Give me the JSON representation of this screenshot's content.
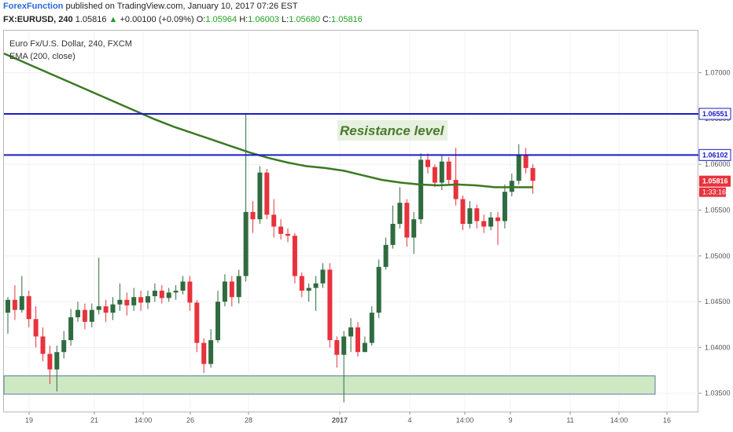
{
  "header": {
    "brand": "ForexFunction",
    "published": " published on TradingView.com, January 10, 2017 07:26 EST",
    "symbol": "FX:EURUSD, 240",
    "last": "1.05816",
    "change": "+0.00100 (+0.09%)",
    "o_label": "O:",
    "o_val": "1.05964",
    "h_label": "H:",
    "h_val": "1.06003",
    "l_label": "L:",
    "l_val": "1.05680",
    "c_label": "C:",
    "c_val": "1.05816"
  },
  "legend": {
    "instrument": "Euro Fx/U.S. Dollar, 240, FXCM",
    "indicator": "EMA (200, close)"
  },
  "colors": {
    "up": "#2f6b3f",
    "down": "#e8323c",
    "ema": "#3a7a22",
    "level": "#1a1ac8",
    "zone_fill": "#cfe8c4",
    "zone_stroke": "#5a7aa0",
    "price_tag": "#e8323c"
  },
  "chart_data": {
    "type": "candlestick",
    "ylim": [
      1.033,
      1.0746
    ],
    "y_ticks": [
      "1.07000",
      "1.06500",
      "1.06000",
      "1.05500",
      "1.05000",
      "1.04500",
      "1.04000",
      "1.03500"
    ],
    "x_ticks": [
      "19",
      "21",
      "14:00",
      "26",
      "28",
      "2017",
      "4",
      "14:00",
      "9",
      "11",
      "14:00",
      "16"
    ],
    "levels": [
      {
        "value": 1.06551,
        "label": "1.06551"
      },
      {
        "value": 1.06102,
        "label": "1.06102"
      }
    ],
    "annotation": "Resistance level",
    "support_zone": [
      1.0349,
      1.0369
    ],
    "last_price": {
      "value": 1.05816,
      "label": "1.05816",
      "countdown": "1:33:16"
    },
    "ema": [
      1.0721,
      1.0712,
      1.0703,
      1.0694,
      1.0685,
      1.0676,
      1.0667,
      1.0658,
      1.0649,
      1.0641,
      1.0634,
      1.0627,
      1.062,
      1.0613,
      1.0607,
      1.0602,
      1.0598,
      1.0596,
      1.0593,
      1.0588,
      1.0583,
      1.058,
      1.0578,
      1.0577,
      1.0578,
      1.0577,
      1.0575,
      1.0575,
      1.0575
    ],
    "candles": [
      [
        1.0438,
        1.0452,
        1.0455,
        1.0415
      ],
      [
        1.0452,
        1.0441,
        1.0468,
        1.043
      ],
      [
        1.0441,
        1.0456,
        1.0478,
        1.0438
      ],
      [
        1.0456,
        1.0431,
        1.0462,
        1.0422
      ],
      [
        1.0431,
        1.0412,
        1.0445,
        1.04
      ],
      [
        1.0412,
        1.0393,
        1.0422,
        1.0385
      ],
      [
        1.0393,
        1.0376,
        1.0402,
        1.036
      ],
      [
        1.0376,
        1.0395,
        1.0402,
        1.0352
      ],
      [
        1.0395,
        1.0408,
        1.0418,
        1.0388
      ],
      [
        1.0408,
        1.0433,
        1.0442,
        1.0402
      ],
      [
        1.0433,
        1.0441,
        1.045,
        1.0428
      ],
      [
        1.0441,
        1.0428,
        1.0448,
        1.042
      ],
      [
        1.0428,
        1.0441,
        1.0448,
        1.0422
      ],
      [
        1.0441,
        1.0445,
        1.0498,
        1.0436
      ],
      [
        1.0445,
        1.0438,
        1.0452,
        1.0428
      ],
      [
        1.0438,
        1.0447,
        1.0455,
        1.043
      ],
      [
        1.0447,
        1.0452,
        1.047,
        1.044
      ],
      [
        1.0452,
        1.0446,
        1.046,
        1.0435
      ],
      [
        1.0446,
        1.0455,
        1.0465,
        1.044
      ],
      [
        1.0455,
        1.0449,
        1.0462,
        1.044
      ],
      [
        1.0449,
        1.0456,
        1.0462,
        1.0442
      ],
      [
        1.0456,
        1.0462,
        1.047,
        1.045
      ],
      [
        1.0462,
        1.0454,
        1.0468,
        1.0448
      ],
      [
        1.0454,
        1.046,
        1.0465,
        1.045
      ],
      [
        1.046,
        1.0462,
        1.0468,
        1.0452
      ],
      [
        1.0462,
        1.0472,
        1.0478,
        1.0458
      ],
      [
        1.0472,
        1.0449,
        1.0478,
        1.044
      ],
      [
        1.0449,
        1.0405,
        1.0452,
        1.0395
      ],
      [
        1.0405,
        1.0382,
        1.041,
        1.0372
      ],
      [
        1.0382,
        1.0408,
        1.042,
        1.0378
      ],
      [
        1.0408,
        1.045,
        1.0462,
        1.0405
      ],
      [
        1.045,
        1.0472,
        1.048,
        1.0445
      ],
      [
        1.0472,
        1.0455,
        1.0478,
        1.0445
      ],
      [
        1.0455,
        1.0478,
        1.0485,
        1.0448
      ],
      [
        1.0478,
        1.0548,
        1.0656,
        1.0472
      ],
      [
        1.0548,
        1.054,
        1.056,
        1.0525
      ],
      [
        1.054,
        1.0591,
        1.0598,
        1.0535
      ],
      [
        1.0591,
        1.0545,
        1.0595,
        1.054
      ],
      [
        1.0545,
        1.0532,
        1.0562,
        1.052
      ],
      [
        1.0532,
        1.0524,
        1.054,
        1.0518
      ],
      [
        1.0524,
        1.0522,
        1.053,
        1.0515
      ],
      [
        1.0522,
        1.0478,
        1.0525,
        1.047
      ],
      [
        1.0478,
        1.0462,
        1.0482,
        1.0455
      ],
      [
        1.0462,
        1.0465,
        1.047,
        1.045
      ],
      [
        1.0465,
        1.047,
        1.0478,
        1.044
      ],
      [
        1.047,
        1.0485,
        1.0492,
        1.0465
      ],
      [
        1.0485,
        1.0408,
        1.0492,
        1.04
      ],
      [
        1.0408,
        1.0392,
        1.0412,
        1.0378
      ],
      [
        1.0392,
        1.0412,
        1.0418,
        1.034
      ],
      [
        1.0412,
        1.0422,
        1.0432,
        1.0395
      ],
      [
        1.0422,
        1.0395,
        1.0428,
        1.039
      ],
      [
        1.0395,
        1.0405,
        1.0412,
        1.0398
      ],
      [
        1.0405,
        1.0438,
        1.0445,
        1.0402
      ],
      [
        1.0438,
        1.0488,
        1.0496,
        1.0432
      ],
      [
        1.0488,
        1.0512,
        1.052,
        1.0485
      ],
      [
        1.0512,
        1.0535,
        1.0555,
        1.0508
      ],
      [
        1.0535,
        1.0558,
        1.0575,
        1.053
      ],
      [
        1.0558,
        1.052,
        1.0562,
        1.051
      ],
      [
        1.052,
        1.054,
        1.0548,
        1.0502
      ],
      [
        1.054,
        1.0605,
        1.0612,
        1.0535
      ],
      [
        1.0605,
        1.0597,
        1.0612,
        1.059
      ],
      [
        1.0597,
        1.058,
        1.06,
        1.0575
      ],
      [
        1.058,
        1.0603,
        1.061,
        1.0572
      ],
      [
        1.0603,
        1.0583,
        1.0608,
        1.0578
      ],
      [
        1.0583,
        1.0562,
        1.0618,
        1.0555
      ],
      [
        1.0562,
        1.0535,
        1.0566,
        1.0528
      ],
      [
        1.0535,
        1.0552,
        1.056,
        1.053
      ],
      [
        1.0552,
        1.0538,
        1.0556,
        1.053
      ],
      [
        1.0538,
        1.0532,
        1.0545,
        1.0525
      ],
      [
        1.0532,
        1.0542,
        1.0548,
        1.0528
      ],
      [
        1.0542,
        1.0538,
        1.0548,
        1.0512
      ],
      [
        1.0538,
        1.057,
        1.0578,
        1.053
      ],
      [
        1.057,
        1.0582,
        1.059,
        1.0565
      ],
      [
        1.0582,
        1.061,
        1.0622,
        1.0578
      ],
      [
        1.061,
        1.0596,
        1.0618,
        1.059
      ],
      [
        1.0596,
        1.0582,
        1.06,
        1.0568
      ]
    ]
  }
}
